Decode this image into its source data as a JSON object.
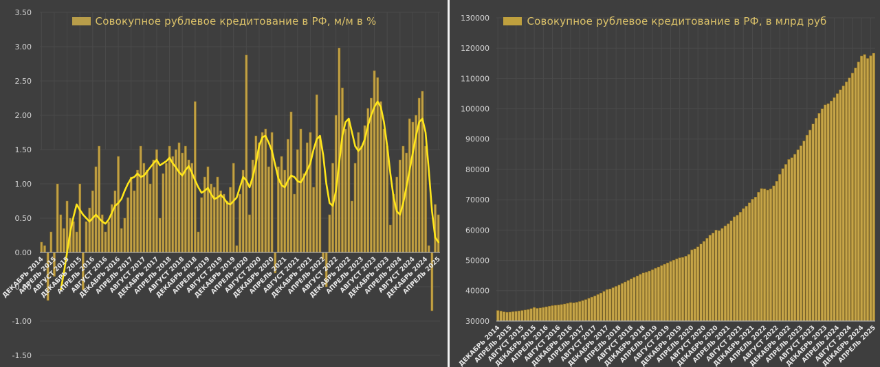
{
  "layout_colors": {
    "background": "#3e3e3e",
    "divider": "#f2f2f2"
  },
  "chart_data": [
    {
      "type": "bar+line",
      "legend": "Совокупное рублевое кредитование в РФ, м/м в %",
      "ylim": [
        -1.5,
        3.5
      ],
      "ytick_step": 0.5,
      "ytick_labels": [
        "3.50",
        "3.00",
        "2.50",
        "2.00",
        "1.50",
        "1.00",
        "0.50",
        "0.00",
        "-0.50",
        "-1.00",
        "-1.50"
      ],
      "x_tick_labels": [
        "ДЕКАБРЬ 2014",
        "АПРЕЛЬ 2015",
        "АВГУСТ 2015",
        "ДЕКАБРЬ 2015",
        "АПРЕЛЬ 2016",
        "АВГУСТ 2016",
        "ДЕКАБРЬ 2016",
        "АПРЕЛЬ 2017",
        "АВГУСТ 2017",
        "ДЕКАБРЬ 2017",
        "АПРЕЛЬ 2018",
        "АВГУСТ 2018",
        "ДЕКАБРЬ 2018",
        "АПРЕЛЬ 2019",
        "АВГУСТ 2019",
        "ДЕКАБРЬ 2019",
        "АПРЕЛЬ 2020",
        "АВГУСТ 2020",
        "ДЕКАБРЬ 2020",
        "АПРЕЛЬ 2021",
        "АВГУСТ 2021",
        "ДЕКАБРЬ 2021",
        "АПРЕЛЬ 2022",
        "АВГУСТ 2022",
        "ДЕКАБРЬ 2022",
        "АПРЕЛЬ 2023",
        "АВГУСТ 2023",
        "ДЕКАБРЬ 2023",
        "АПРЕЛЬ 2024",
        "АВГУСТ 2024",
        "ДЕКАБРЬ 2024",
        "АПРЕЛЬ 2025"
      ],
      "x_months_span": "ДЕКАБРЬ 2014 — АПРЕЛЬ 2025, месячные данные",
      "bars": [
        0.15,
        0.1,
        -0.7,
        0.3,
        -0.35,
        1.0,
        0.55,
        0.35,
        0.75,
        0.5,
        0.45,
        0.3,
        1.0,
        -0.55,
        0.45,
        0.65,
        0.9,
        1.25,
        1.55,
        0.55,
        0.3,
        0.45,
        0.7,
        0.9,
        1.4,
        0.35,
        0.5,
        0.8,
        1.1,
        0.9,
        1.2,
        1.55,
        1.3,
        1.2,
        1.0,
        1.35,
        1.5,
        0.5,
        1.15,
        1.3,
        1.55,
        1.4,
        1.5,
        1.6,
        1.45,
        1.55,
        1.35,
        1.3,
        2.2,
        0.3,
        0.8,
        1.1,
        1.25,
        1.0,
        0.95,
        1.1,
        0.9,
        0.85,
        0.75,
        0.95,
        1.3,
        0.1,
        0.85,
        1.2,
        2.88,
        0.55,
        1.35,
        1.7,
        1.6,
        1.75,
        1.8,
        1.25,
        1.75,
        -0.3,
        1.25,
        1.4,
        1.2,
        1.65,
        2.05,
        0.85,
        1.5,
        1.8,
        1.15,
        1.6,
        1.75,
        0.95,
        2.3,
        1.7,
        -0.1,
        -0.5,
        0.55,
        1.3,
        2.0,
        2.98,
        2.4,
        1.8,
        1.95,
        0.75,
        1.3,
        1.75,
        1.55,
        1.85,
        2.1,
        2.25,
        2.65,
        2.55,
        2.2,
        1.8,
        1.55,
        0.4,
        0.85,
        1.1,
        1.35,
        1.55,
        1.45,
        1.95,
        1.9,
        2.0,
        2.25,
        2.35,
        1.55,
        0.1,
        -0.85,
        0.7,
        0.55
      ],
      "line": [
        null,
        null,
        null,
        null,
        null,
        null,
        -0.55,
        -0.3,
        0.0,
        0.3,
        0.52,
        0.7,
        0.62,
        0.55,
        0.5,
        0.45,
        0.5,
        0.55,
        0.5,
        0.45,
        0.42,
        0.48,
        0.58,
        0.68,
        0.72,
        0.78,
        0.9,
        1.0,
        1.08,
        1.1,
        1.15,
        1.1,
        1.12,
        1.18,
        1.24,
        1.3,
        1.35,
        1.27,
        1.3,
        1.33,
        1.38,
        1.3,
        1.24,
        1.17,
        1.12,
        1.2,
        1.26,
        1.16,
        1.05,
        0.95,
        0.87,
        0.9,
        0.94,
        0.85,
        0.78,
        0.8,
        0.84,
        0.79,
        0.72,
        0.7,
        0.75,
        0.8,
        0.95,
        1.1,
        1.05,
        0.95,
        1.1,
        1.3,
        1.55,
        1.68,
        1.7,
        1.6,
        1.48,
        1.28,
        1.08,
        0.98,
        0.95,
        1.05,
        1.12,
        1.1,
        1.04,
        1.02,
        1.1,
        1.2,
        1.3,
        1.5,
        1.65,
        1.7,
        1.42,
        1.0,
        0.72,
        0.68,
        0.9,
        1.3,
        1.7,
        1.9,
        1.95,
        1.75,
        1.55,
        1.48,
        1.53,
        1.65,
        1.85,
        2.0,
        2.12,
        2.2,
        2.12,
        1.9,
        1.55,
        1.15,
        0.8,
        0.6,
        0.55,
        0.72,
        0.95,
        1.2,
        1.45,
        1.7,
        1.9,
        1.95,
        1.75,
        1.2,
        0.6,
        0.22,
        0.15
      ],
      "colors": {
        "bar": "#c2a144",
        "bar_edge": "#8a6f25",
        "line": "#ffe61a",
        "legend_text": "#dcc269",
        "swatch": "#b89d4a",
        "axis_text": "#d6d6d6",
        "month_text": "#e8e8e8",
        "grid": "#4a4a4a",
        "baseline": "#adadad"
      }
    },
    {
      "type": "bar",
      "legend": "Совокупное рублевое кредитование в РФ, в млрд руб",
      "ylim": [
        30000,
        130000
      ],
      "ytick_step": 10000,
      "ytick_labels": [
        "130000",
        "120000",
        "110000",
        "100000",
        "90000",
        "80000",
        "70000",
        "60000",
        "50000",
        "40000",
        "30000"
      ],
      "x_tick_labels": [
        "ДЕКАБРЬ 2014",
        "АПРЕЛЬ 2015",
        "АВГУСТ 2015",
        "ДЕКАБРЬ 2015",
        "АПРЕЛЬ 2016",
        "АВГУСТ 2016",
        "ДЕКАБРЬ 2016",
        "АПРЕЛЬ 2017",
        "АВГУСТ 2017",
        "ДЕКАБРЬ 2017",
        "АПРЕЛЬ 2018",
        "АВГУСТ 2018",
        "ДЕКАБРЬ 2018",
        "АПРЕЛЬ 2019",
        "АВГУСТ 2019",
        "ДЕКАБРЬ 2019",
        "АПРЕЛЬ 2020",
        "АВГУСТ 2020",
        "ДЕКАБРЬ 2020",
        "АПРЕЛЬ 2021",
        "АВГУСТ 2021",
        "ДЕКАБРЬ 2021",
        "АПРЕЛЬ 2022",
        "АВГУСТ 2022",
        "ДЕКАБРЬ 2022",
        "АПРЕЛЬ 2023",
        "АВГУСТ 2023",
        "ДЕКАБРЬ 2023",
        "АПРЕЛЬ 2024",
        "АВГУСТ 2024",
        "ДЕКАБРЬ 2024",
        "АПРЕЛЬ 2025"
      ],
      "x_months_span": "ДЕКАБРЬ 2014 — АПРЕЛЬ 2025, месячные данные",
      "values": [
        33500,
        33300,
        33050,
        32900,
        32950,
        33100,
        33200,
        33350,
        33500,
        33650,
        33800,
        34100,
        34500,
        34200,
        34350,
        34500,
        34700,
        34900,
        35100,
        35200,
        35300,
        35450,
        35650,
        35850,
        36100,
        36000,
        36200,
        36450,
        36750,
        37100,
        37500,
        37900,
        38300,
        38750,
        39250,
        39800,
        40400,
        40600,
        41000,
        41450,
        41900,
        42400,
        42900,
        43400,
        43900,
        44400,
        44900,
        45400,
        45900,
        46100,
        46500,
        46950,
        47400,
        47850,
        48300,
        48750,
        49200,
        49650,
        50100,
        50500,
        50900,
        51000,
        51400,
        52000,
        53500,
        53800,
        54500,
        55400,
        56300,
        57300,
        58300,
        59000,
        60000,
        59800,
        60550,
        61400,
        62100,
        63100,
        64400,
        64900,
        65900,
        67100,
        67900,
        69000,
        70200,
        70900,
        72500,
        73700,
        73600,
        73200,
        73600,
        74600,
        76100,
        78400,
        80300,
        81700,
        83300,
        83900,
        85000,
        86500,
        87800,
        89400,
        91300,
        93000,
        95000,
        96900,
        98500,
        100000,
        101300,
        101700,
        102600,
        103700,
        105000,
        106300,
        107600,
        108900,
        110200,
        111800,
        113500,
        115500,
        117400,
        117900,
        116600,
        117500,
        118400
      ],
      "colors": {
        "bar": "#c6a548",
        "bar_edge": "#86691f",
        "legend_text": "#dcc269",
        "swatch": "#bfa03e",
        "axis_text": "#d6d6d6",
        "month_text": "#e8e8e8",
        "grid": "#4a4a4a",
        "baseline": "#adadad"
      }
    }
  ]
}
